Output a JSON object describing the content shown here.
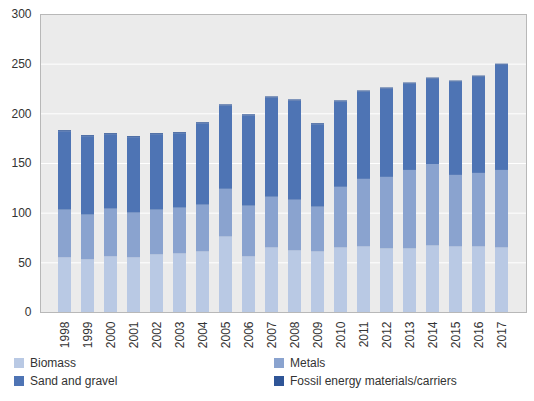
{
  "chart_data": {
    "type": "bar",
    "stacked": true,
    "grid": true,
    "categories": [
      "1998",
      "1999",
      "2000",
      "2001",
      "2002",
      "2003",
      "2004",
      "2005",
      "2006",
      "2007",
      "2008",
      "2009",
      "2010",
      "2011",
      "2012",
      "2013",
      "2014",
      "2015",
      "2016",
      "2017"
    ],
    "series": [
      {
        "name": "Biomass",
        "color": "#b9c9e4",
        "values": [
          55,
          53,
          56,
          55,
          58,
          59,
          61,
          76,
          56,
          65,
          62,
          61,
          65,
          66,
          64,
          64,
          67,
          66,
          66,
          65
        ]
      },
      {
        "name": "Metals",
        "color": "#8aa3cf",
        "values": [
          48,
          45,
          48,
          45,
          45,
          46,
          47,
          48,
          51,
          51,
          51,
          45,
          61,
          68,
          72,
          79,
          82,
          72,
          74,
          78
        ]
      },
      {
        "name": "Sand and gravel",
        "color": "#4e74b4",
        "values": [
          79,
          79,
          75,
          76,
          76,
          75,
          82,
          84,
          91,
          100,
          100,
          83,
          86,
          88,
          89,
          87,
          86,
          94,
          97,
          106
        ]
      },
      {
        "name": "Fossil energy materials/carriers",
        "color": "#2f5597",
        "values": [
          1,
          1,
          1,
          1,
          1,
          1,
          1,
          1,
          1,
          1,
          1,
          1,
          1,
          1,
          1,
          1,
          1,
          1,
          1,
          1
        ]
      }
    ],
    "ylim": [
      0,
      300
    ],
    "yticks": [
      0,
      50,
      100,
      150,
      200,
      250,
      300
    ]
  }
}
